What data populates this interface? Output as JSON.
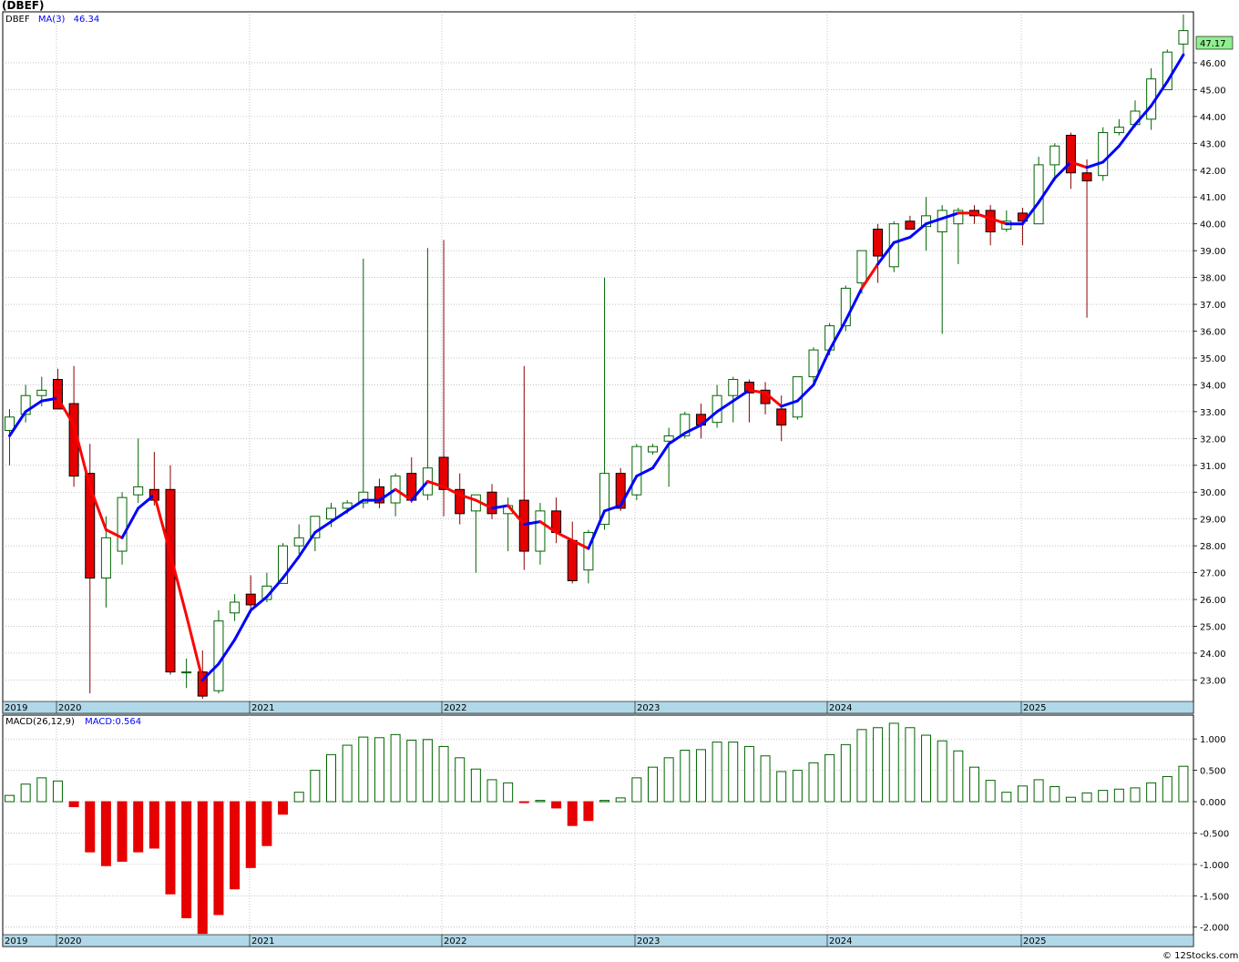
{
  "title": "(DBEF)",
  "watermark": "© 12Stocks.com",
  "colors": {
    "up": "#006400",
    "down": "#e60000",
    "ma_up": "#0000ff",
    "ma_down": "#ff0000",
    "grid": "#a0a0a0",
    "axis_band": "#b0d8e8",
    "last_label_bg": "#90ee90"
  },
  "chart_data": [
    {
      "type": "candlestick",
      "legend": {
        "symbol": "DBEF",
        "ma_label": "MA(3)",
        "ma_value": "46.34"
      },
      "last_price_label": "47.17",
      "x_labels": [
        "2019",
        "2020",
        "2021",
        "2022",
        "2023",
        "2024",
        "2025"
      ],
      "y_ticks": [
        23,
        24,
        25,
        26,
        27,
        28,
        29,
        30,
        31,
        32,
        33,
        34,
        35,
        36,
        37,
        38,
        39,
        40,
        41,
        42,
        43,
        44,
        45,
        46
      ],
      "y_tick_labels": [
        "23.00",
        "24.00",
        "25.00",
        "26.00",
        "27.00",
        "28.00",
        "29.00",
        "30.00",
        "31.00",
        "32.00",
        "33.00",
        "34.00",
        "35.00",
        "36.00",
        "37.00",
        "38.00",
        "39.00",
        "40.00",
        "41.00",
        "42.00",
        "43.00",
        "44.00",
        "45.00",
        "46.00"
      ],
      "ylim": [
        22.2,
        47.9
      ],
      "first_month": "2019-09",
      "candles": [
        [
          32.3,
          33.1,
          31.0,
          32.8
        ],
        [
          32.9,
          34.0,
          32.6,
          33.6
        ],
        [
          33.6,
          34.3,
          33.2,
          33.8
        ],
        [
          34.2,
          34.6,
          33.1,
          33.1
        ],
        [
          33.3,
          34.7,
          30.2,
          30.6
        ],
        [
          30.7,
          31.8,
          22.5,
          26.8
        ],
        [
          26.8,
          29.1,
          25.7,
          28.3
        ],
        [
          27.8,
          30.0,
          27.3,
          29.8
        ],
        [
          29.9,
          32.0,
          29.6,
          30.2
        ],
        [
          30.1,
          31.5,
          29.5,
          29.7
        ],
        [
          30.1,
          31.0,
          23.2,
          23.3
        ],
        [
          23.3,
          23.8,
          22.7,
          23.3
        ],
        [
          23.3,
          24.1,
          22.3,
          22.4
        ],
        [
          22.6,
          25.6,
          22.5,
          25.2
        ],
        [
          25.5,
          26.2,
          25.2,
          25.9
        ],
        [
          26.2,
          26.9,
          25.5,
          25.8
        ],
        [
          26.0,
          27.0,
          25.9,
          26.5
        ],
        [
          26.6,
          28.1,
          26.6,
          28.0
        ],
        [
          28.0,
          28.8,
          27.7,
          28.3
        ],
        [
          28.3,
          29.1,
          27.8,
          29.1
        ],
        [
          29.0,
          29.6,
          28.7,
          29.4
        ],
        [
          29.4,
          29.7,
          29.2,
          29.6
        ],
        [
          29.6,
          38.7,
          29.4,
          30.0
        ],
        [
          30.2,
          30.5,
          29.4,
          29.6
        ],
        [
          29.6,
          30.7,
          29.1,
          30.6
        ],
        [
          30.7,
          31.3,
          29.6,
          29.7
        ],
        [
          29.9,
          39.1,
          29.7,
          30.9
        ],
        [
          31.3,
          39.4,
          29.1,
          30.1
        ],
        [
          30.1,
          30.7,
          28.8,
          29.2
        ],
        [
          29.3,
          29.9,
          27.0,
          29.9
        ],
        [
          30.0,
          30.3,
          29.0,
          29.2
        ],
        [
          29.2,
          29.8,
          27.8,
          29.5
        ],
        [
          29.7,
          34.7,
          27.1,
          27.8
        ],
        [
          27.8,
          29.6,
          27.3,
          29.3
        ],
        [
          29.3,
          29.8,
          28.1,
          28.5
        ],
        [
          28.2,
          28.9,
          26.6,
          26.7
        ],
        [
          27.1,
          28.6,
          26.6,
          28.5
        ],
        [
          28.8,
          38.0,
          28.6,
          30.7
        ],
        [
          30.7,
          30.9,
          29.3,
          29.4
        ],
        [
          29.9,
          31.8,
          29.7,
          31.7
        ],
        [
          31.5,
          31.8,
          31.4,
          31.7
        ],
        [
          31.9,
          32.4,
          30.2,
          32.1
        ],
        [
          32.1,
          33.0,
          32.0,
          32.9
        ],
        [
          32.9,
          33.3,
          32.0,
          32.5
        ],
        [
          32.6,
          34.0,
          32.4,
          33.6
        ],
        [
          33.6,
          34.3,
          32.6,
          34.2
        ],
        [
          34.1,
          34.2,
          32.6,
          33.7
        ],
        [
          33.8,
          34.1,
          32.9,
          33.3
        ],
        [
          33.1,
          33.6,
          31.9,
          32.5
        ],
        [
          32.8,
          34.3,
          32.7,
          34.3
        ],
        [
          34.3,
          35.4,
          34.1,
          35.3
        ],
        [
          35.3,
          36.3,
          35.1,
          36.2
        ],
        [
          36.2,
          37.7,
          36.0,
          37.6
        ],
        [
          37.8,
          39.0,
          37.4,
          39.0
        ],
        [
          39.8,
          40.0,
          37.8,
          38.8
        ],
        [
          38.4,
          40.1,
          38.2,
          40.0
        ],
        [
          40.1,
          40.3,
          39.8,
          39.8
        ],
        [
          39.9,
          41.0,
          39.0,
          40.3
        ],
        [
          39.7,
          40.7,
          35.9,
          40.5
        ],
        [
          40.0,
          40.6,
          38.5,
          40.5
        ],
        [
          40.5,
          40.7,
          40.0,
          40.3
        ],
        [
          40.5,
          40.7,
          39.2,
          39.7
        ],
        [
          39.8,
          40.5,
          39.7,
          40.1
        ],
        [
          40.4,
          40.6,
          39.2,
          40.1
        ],
        [
          40.0,
          42.5,
          40.0,
          42.2
        ],
        [
          42.2,
          43.0,
          41.6,
          42.9
        ],
        [
          43.3,
          43.4,
          41.3,
          41.9
        ],
        [
          41.9,
          42.4,
          36.5,
          41.6
        ],
        [
          41.8,
          43.6,
          41.6,
          43.4
        ],
        [
          43.4,
          43.9,
          43.3,
          43.6
        ],
        [
          43.7,
          44.6,
          43.6,
          44.2
        ],
        [
          43.9,
          45.8,
          43.5,
          45.4
        ],
        [
          45.0,
          46.5,
          45.0,
          46.4
        ],
        [
          46.7,
          47.8,
          46.3,
          47.2
        ]
      ],
      "ma3": [
        32.1,
        33.0,
        33.4,
        33.5,
        32.5,
        30.2,
        28.6,
        28.3,
        29.4,
        29.9,
        27.7,
        25.4,
        23.0,
        23.6,
        24.5,
        25.6,
        26.1,
        26.8,
        27.6,
        28.5,
        28.9,
        29.3,
        29.7,
        29.7,
        30.1,
        29.7,
        30.4,
        30.2,
        29.9,
        29.7,
        29.4,
        29.5,
        28.8,
        28.9,
        28.5,
        28.2,
        27.9,
        29.3,
        29.5,
        30.6,
        30.9,
        31.8,
        32.2,
        32.5,
        33.0,
        33.4,
        33.8,
        33.7,
        33.2,
        33.4,
        34.0,
        35.3,
        36.4,
        37.6,
        38.5,
        39.3,
        39.5,
        40.0,
        40.2,
        40.4,
        40.4,
        40.2,
        40.0,
        40.0,
        40.8,
        41.7,
        42.3,
        42.1,
        42.3,
        42.9,
        43.7,
        44.4,
        45.3,
        46.3
      ],
      "ma_colors": "u,u,u,u,d,d,d,d,u,u,d,d,d,u,u,u,u,u,u,u,u,u,u,u,u,d,u,d,d,d,d,u,d,u,d,d,d,u,u,u,u,u,u,u,u,u,u,d,d,u,u,u,u,u,d,u,u,u,u,u,d,d,d,u,u,u,u,d,u,u,u,u,u,u"
    },
    {
      "type": "bar",
      "legend": {
        "name": "MACD(26,12,9)",
        "value_label": "MACD:0.564"
      },
      "x_labels": [
        "2019",
        "2020",
        "2021",
        "2022",
        "2023",
        "2024",
        "2025"
      ],
      "y_ticks": [
        1.0,
        0.5,
        0.0,
        -0.5,
        -1.0,
        -1.5,
        -2.0
      ],
      "y_tick_labels": [
        "1.000",
        "0.500",
        "0.000",
        "-0.500",
        "-1.000",
        "-1.500",
        "-2.000"
      ],
      "ylim": [
        -2.12,
        1.38
      ],
      "values": [
        0.1,
        0.28,
        0.38,
        0.33,
        -0.08,
        -0.8,
        -1.02,
        -0.95,
        -0.8,
        -0.74,
        -1.47,
        -1.85,
        -2.1,
        -1.8,
        -1.39,
        -1.05,
        -0.7,
        -0.2,
        0.15,
        0.5,
        0.75,
        0.9,
        1.03,
        1.02,
        1.07,
        0.98,
        0.99,
        0.88,
        0.7,
        0.52,
        0.35,
        0.3,
        -0.01,
        0.02,
        -0.1,
        -0.38,
        -0.3,
        0.02,
        0.06,
        0.38,
        0.55,
        0.7,
        0.82,
        0.83,
        0.95,
        0.95,
        0.88,
        0.73,
        0.48,
        0.5,
        0.62,
        0.75,
        0.91,
        1.15,
        1.18,
        1.25,
        1.18,
        1.06,
        0.97,
        0.81,
        0.55,
        0.34,
        0.15,
        0.25,
        0.35,
        0.24,
        0.07,
        0.14,
        0.18,
        0.2,
        0.22,
        0.3,
        0.4,
        0.564
      ]
    }
  ]
}
